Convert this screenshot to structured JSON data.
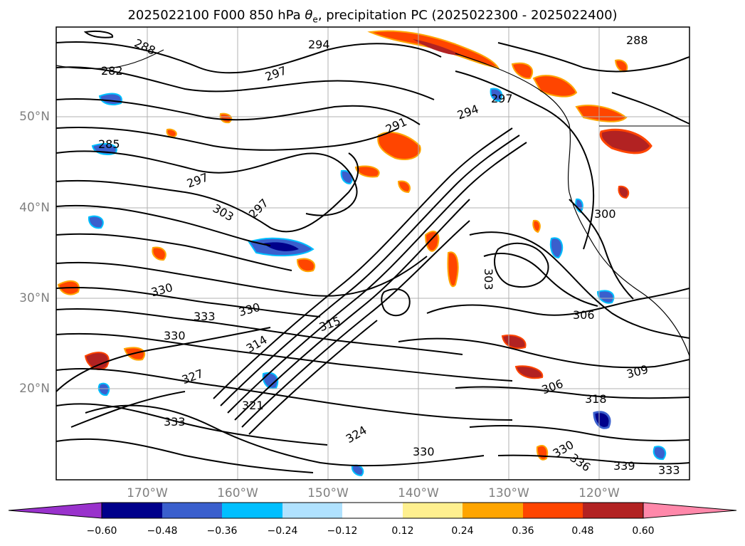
{
  "title": {
    "prefix": "2025022100 F000 850 hPa ",
    "theta": "θ",
    "sub": "e",
    "suffix": ", precipitation PC (2025022300 - 2025022400)"
  },
  "latitudes": [
    "50°N",
    "40°N",
    "30°N",
    "20°N"
  ],
  "longitudes": [
    "170°W",
    "160°W",
    "150°W",
    "140°W",
    "130°W",
    "120°W"
  ],
  "colorbar": {
    "ticks": [
      "−0.60",
      "−0.48",
      "−0.36",
      "−0.24",
      "−0.12",
      "0.12",
      "0.24",
      "0.36",
      "0.48",
      "0.60"
    ],
    "colors": [
      "#9932cc",
      "#00008b",
      "#3a5fcd",
      "#00bfff",
      "#b0e2ff",
      "#ffffff",
      "#fff08f",
      "#ffa500",
      "#ff4500",
      "#b22222",
      "#ff88aa"
    ]
  },
  "contour_labels": [
    "288",
    "282",
    "294",
    "297",
    "291",
    "294",
    "297",
    "285",
    "297",
    "297",
    "303",
    "300",
    "303",
    "306",
    "306",
    "309",
    "318",
    "330",
    "330",
    "333",
    "330",
    "327",
    "315",
    "314",
    "321",
    "324",
    "333",
    "330",
    "336",
    "339",
    "333",
    "330",
    "288"
  ]
}
